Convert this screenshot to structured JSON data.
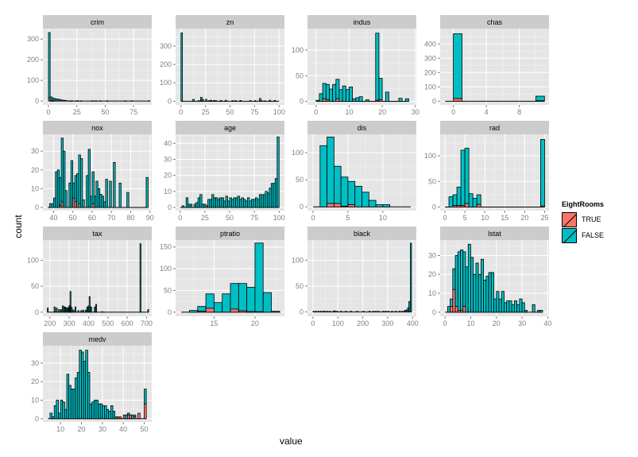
{
  "chart_data": {
    "type": "bar",
    "subtype": "faceted stacked histogram",
    "xlabel": "value",
    "ylabel": "count",
    "legend": {
      "title": "EightRooms",
      "position": "right",
      "entries": [
        {
          "name": "TRUE",
          "color": "#F8766D"
        },
        {
          "name": "FALSE",
          "color": "#00BFC4"
        }
      ]
    },
    "facets": [
      {
        "name": "crim",
        "xlim": [
          -4.9,
          91
        ],
        "ylim": [
          -19,
          351
        ],
        "xticks": [
          0,
          25,
          50,
          75
        ],
        "yticks": [
          0,
          100,
          200,
          300
        ],
        "binwidth": 1.5,
        "range": [
          0,
          89
        ],
        "x": [
          0,
          1.5,
          3,
          4.5,
          6,
          7.5,
          9,
          10.5,
          12,
          13.5,
          15,
          18,
          20,
          24,
          25,
          28,
          38,
          41,
          45,
          51,
          67,
          73,
          88
        ],
        "false": [
          317,
          18,
          14,
          12,
          10,
          9,
          8,
          5,
          4,
          3,
          2,
          1,
          1,
          1,
          1,
          1,
          1,
          1,
          1,
          1,
          1,
          1,
          1
        ],
        "true": [
          15,
          2,
          1,
          0,
          0,
          0,
          0,
          0,
          0,
          0,
          0,
          0,
          0,
          0,
          0,
          0,
          0,
          0,
          0,
          0,
          0,
          0,
          0
        ]
      },
      {
        "name": "zn",
        "xlim": [
          -5.5,
          105.5
        ],
        "ylim": [
          -20,
          395
        ],
        "xticks": [
          0,
          25,
          50,
          75,
          100
        ],
        "yticks": [
          0,
          100,
          200,
          300
        ],
        "binwidth": 1.5,
        "range": [
          0,
          100
        ],
        "x": [
          0,
          12,
          17.5,
          20,
          21.5,
          25,
          28,
          30,
          33,
          35,
          40,
          45,
          52,
          55,
          60,
          70,
          75,
          80,
          82,
          85,
          90,
          95
        ],
        "false": [
          370,
          10,
          3,
          17,
          10,
          10,
          3,
          5,
          4,
          3,
          4,
          5,
          3,
          3,
          4,
          3,
          3,
          13,
          2,
          2,
          5,
          4
        ],
        "true": [
          2,
          0,
          0,
          4,
          0,
          0,
          0,
          0,
          0,
          0,
          0,
          0,
          0,
          0,
          0,
          0,
          0,
          2,
          0,
          0,
          0,
          0
        ]
      },
      {
        "name": "indus",
        "xlim": [
          -2.6,
          30.3
        ],
        "ylim": [
          -7,
          142
        ],
        "xticks": [
          0,
          10,
          20,
          30
        ],
        "yticks": [
          0,
          50,
          100
        ],
        "binwidth": 1,
        "range": [
          0,
          28
        ],
        "x": [
          0,
          1,
          2,
          3,
          4,
          5,
          6,
          7,
          8,
          9,
          10,
          11,
          12,
          13,
          15,
          18,
          19,
          21,
          25,
          27
        ],
        "false": [
          2,
          15,
          30,
          30,
          24,
          33,
          38,
          23,
          30,
          23,
          28,
          5,
          7,
          9,
          3,
          131,
          42,
          18,
          6,
          5
        ],
        "true": [
          0,
          0,
          5,
          3,
          0,
          0,
          5,
          0,
          0,
          0,
          0,
          0,
          0,
          0,
          0,
          2,
          3,
          0,
          0,
          0
        ]
      },
      {
        "name": "chas",
        "xlim": [
          -1.6,
          11.6
        ],
        "ylim": [
          -26,
          507
        ],
        "xticks": [
          0,
          4,
          8
        ],
        "yticks": [
          0,
          100,
          200,
          300,
          400
        ],
        "binwidth": 1.05,
        "range": [
          -1,
          11
        ],
        "x": [
          0,
          10
        ],
        "false": [
          453,
          32
        ],
        "true": [
          18,
          3
        ]
      },
      {
        "name": "nox",
        "xlim": [
          34.5,
          90.9
        ],
        "ylim": [
          -1.7,
          39
        ],
        "xticks": [
          40,
          50,
          60,
          70,
          80,
          90
        ],
        "yticks": [
          0,
          10,
          20,
          30
        ],
        "binwidth": 1,
        "range": [
          37,
          89
        ],
        "x": [
          38,
          39,
          40,
          41,
          42,
          43,
          44,
          45,
          46,
          48,
          49,
          50,
          51,
          52,
          53,
          54,
          55,
          57,
          58,
          59,
          60,
          61,
          62,
          63,
          64,
          65,
          66,
          67,
          69,
          71,
          74,
          78,
          88
        ],
        "false": [
          2,
          2,
          5,
          19,
          20,
          15,
          34,
          30,
          9,
          13,
          25,
          8,
          14,
          18,
          26,
          26,
          4,
          17,
          31,
          6,
          17,
          6,
          14,
          10,
          7,
          6,
          3,
          15,
          14,
          24,
          13,
          8,
          16
        ],
        "true": [
          0,
          0,
          0,
          0,
          0,
          1,
          3,
          0,
          0,
          0,
          0,
          5,
          3,
          0,
          2,
          0,
          0,
          0,
          0,
          0,
          2,
          0,
          0,
          0,
          0,
          0,
          0,
          0,
          0,
          0,
          0,
          0,
          0
        ]
      },
      {
        "name": "age",
        "xlim": [
          -4.6,
          105.4
        ],
        "ylim": [
          -2,
          45.6
        ],
        "xticks": [
          0,
          25,
          50,
          75,
          100
        ],
        "yticks": [
          0,
          10,
          20,
          30,
          40
        ],
        "binwidth": 2,
        "range": [
          0,
          100
        ],
        "x": [
          2,
          6,
          8,
          10,
          14,
          16,
          18,
          20,
          22,
          24,
          26,
          28,
          30,
          32,
          34,
          36,
          38,
          40,
          42,
          44,
          46,
          48,
          50,
          52,
          54,
          56,
          58,
          60,
          62,
          64,
          66,
          68,
          70,
          72,
          74,
          76,
          78,
          80,
          82,
          84,
          86,
          88,
          90,
          92,
          94,
          96,
          98
        ],
        "false": [
          1,
          6,
          2,
          2,
          2,
          3,
          6,
          8,
          2,
          2,
          1,
          5,
          5,
          8,
          6,
          6,
          5,
          6,
          6,
          4,
          7,
          4,
          6,
          5,
          6,
          6,
          7,
          5,
          6,
          5,
          4,
          6,
          4,
          5,
          5,
          6,
          5,
          8,
          8,
          8,
          10,
          9,
          12,
          15,
          15,
          18,
          44
        ],
        "true": [
          0,
          0,
          0,
          0,
          0,
          0,
          0,
          0,
          0,
          0,
          0,
          0,
          0,
          0,
          0,
          0,
          0,
          0,
          0,
          0,
          0,
          0,
          0,
          0,
          0,
          0,
          0,
          0,
          0,
          0,
          0,
          0,
          0,
          0,
          0,
          0,
          0,
          0,
          0,
          0,
          0,
          0,
          0,
          0,
          0,
          0,
          0
        ]
      },
      {
        "name": "dis",
        "xlim": [
          -0.8,
          14.8
        ],
        "ylim": [
          -7,
          134
        ],
        "xticks": [
          0,
          5,
          10
        ],
        "yticks": [
          0,
          50,
          100
        ],
        "binwidth": 1,
        "range": [
          0,
          14
        ],
        "x": [
          1,
          2,
          3,
          4,
          5,
          6,
          7,
          8,
          9,
          10
        ],
        "false": [
          113,
          123,
          69,
          54,
          43,
          38,
          27,
          12,
          4,
          4
        ],
        "true": [
          0,
          6,
          6,
          1,
          4,
          0,
          0,
          0,
          0,
          0
        ]
      },
      {
        "name": "rad",
        "xlim": [
          -1.2,
          26.1
        ],
        "ylim": [
          -7,
          142
        ],
        "xticks": [
          0,
          5,
          10,
          15,
          20,
          25
        ],
        "yticks": [
          0,
          50,
          100
        ],
        "binwidth": 1,
        "range": [
          0,
          25
        ],
        "x": [
          1,
          2,
          3,
          4,
          5,
          6,
          7,
          8,
          24
        ],
        "false": [
          20,
          21,
          36,
          108,
          108,
          26,
          17,
          19,
          130
        ],
        "true": [
          0,
          3,
          3,
          3,
          7,
          0,
          0,
          5,
          2
        ]
      },
      {
        "name": "tax",
        "xlim": [
          164,
          727
        ],
        "ylim": [
          -8,
          139
        ],
        "xticks": [
          200,
          300,
          400,
          500,
          600,
          700
        ],
        "yticks": [
          0,
          50,
          100
        ],
        "binwidth": 5,
        "range": [
          187,
          711
        ],
        "x": [
          187,
          222,
          233,
          245,
          255,
          265,
          270,
          277,
          281,
          289,
          296,
          300,
          304,
          307,
          311,
          320,
          330,
          345,
          360,
          370,
          384,
          391,
          398,
          403,
          411,
          430,
          437,
          469,
          666,
          706
        ],
        "false": [
          8,
          10,
          8,
          5,
          5,
          12,
          10,
          10,
          8,
          8,
          10,
          13,
          40,
          10,
          8,
          4,
          10,
          3,
          3,
          4,
          4,
          10,
          12,
          30,
          10,
          10,
          15,
          1,
          132,
          5
        ],
        "true": [
          0,
          0,
          0,
          0,
          0,
          0,
          0,
          0,
          0,
          0,
          0,
          0,
          0,
          0,
          0,
          0,
          0,
          0,
          0,
          0,
          0,
          0,
          0,
          0,
          0,
          0,
          0,
          0,
          0,
          0
        ]
      },
      {
        "name": "ptratio",
        "xlim": [
          10.3,
          23.6
        ],
        "ylim": [
          -9.6,
          166
        ],
        "xticks": [
          15,
          20
        ],
        "yticks": [
          0,
          50,
          100,
          150
        ],
        "binwidth": 1,
        "range": [
          11,
          23.1
        ],
        "x": [
          12,
          13,
          14,
          15,
          16,
          17,
          18,
          19,
          20,
          21,
          22
        ],
        "false": [
          4,
          11,
          33,
          22,
          42,
          59,
          63,
          56,
          158,
          45,
          2
        ],
        "true": [
          0,
          2,
          9,
          0,
          0,
          7,
          3,
          1,
          1,
          0,
          0
        ]
      },
      {
        "name": "black",
        "xlim": [
          -22,
          415
        ],
        "ylim": [
          -8.7,
          139
        ],
        "xticks": [
          0,
          100,
          200,
          300,
          400
        ],
        "yticks": [
          0,
          50,
          100
        ],
        "binwidth": 5,
        "range": [
          0,
          396
        ],
        "x": [
          0,
          10,
          20,
          30,
          40,
          45,
          55,
          65,
          80,
          85,
          95,
          110,
          130,
          150,
          175,
          200,
          225,
          240,
          250,
          260,
          280,
          290,
          300,
          315,
          330,
          345,
          355,
          365,
          370,
          375,
          380,
          385,
          391
        ],
        "false": [
          1,
          1,
          1,
          1,
          1,
          1,
          1,
          1,
          1,
          2,
          1,
          1,
          1,
          1,
          1,
          1,
          1,
          1,
          1,
          1,
          1,
          1,
          1,
          1,
          1,
          1,
          1,
          2,
          3,
          4,
          8,
          20,
          133
        ],
        "true": [
          0,
          0,
          0,
          0,
          0,
          0,
          0,
          0,
          0,
          0,
          0,
          0,
          0,
          0,
          0,
          0,
          0,
          0,
          0,
          0,
          0,
          0,
          0,
          0,
          0,
          0,
          0,
          0,
          0,
          0,
          0,
          0,
          0
        ]
      },
      {
        "name": "lstat",
        "xlim": [
          -1.9,
          40.5
        ],
        "ylim": [
          -2.2,
          38.2
        ],
        "xticks": [
          0,
          10,
          20,
          30,
          40
        ],
        "yticks": [
          0,
          10,
          20,
          30
        ],
        "binwidth": 1,
        "range": [
          0,
          38
        ],
        "x": [
          1,
          2,
          3,
          4,
          5,
          6,
          7,
          8,
          9,
          10,
          11,
          12,
          13,
          14,
          15,
          16,
          17,
          18,
          19,
          20,
          21,
          22,
          23,
          24,
          25,
          26,
          27,
          28,
          29,
          30,
          31,
          34,
          36,
          37
        ],
        "false": [
          3,
          4,
          11,
          27,
          31,
          32,
          29,
          24,
          36,
          29,
          20,
          26,
          20,
          28,
          17,
          19,
          21,
          21,
          7,
          11,
          7,
          11,
          5,
          6,
          6,
          4,
          6,
          4,
          7,
          5,
          1,
          4,
          1,
          1
        ],
        "true": [
          0,
          3,
          12,
          3,
          1,
          1,
          3,
          0,
          0,
          0,
          0,
          0,
          0,
          0,
          0,
          0,
          0,
          0,
          0,
          0,
          0,
          0,
          0,
          0,
          0,
          0,
          0,
          0,
          0,
          0,
          0,
          0,
          0,
          0
        ]
      },
      {
        "name": "medv",
        "xlim": [
          1.6,
          53.6
        ],
        "ylim": [
          -1.8,
          39.4
        ],
        "xticks": [
          10,
          20,
          30,
          40,
          50
        ],
        "yticks": [
          0,
          10,
          20,
          30
        ],
        "binwidth": 1,
        "range": [
          4,
          51
        ],
        "x": [
          5,
          6,
          7,
          8,
          9,
          10,
          11,
          12,
          13,
          14,
          15,
          16,
          17,
          18,
          19,
          20,
          21,
          22,
          23,
          24,
          25,
          26,
          27,
          28,
          29,
          30,
          31,
          32,
          33,
          34,
          35,
          36,
          37,
          38,
          40,
          41,
          42,
          43,
          44,
          45,
          47,
          50
        ],
        "false": [
          3,
          1,
          7,
          10,
          3,
          10,
          9,
          5,
          24,
          18,
          16,
          16,
          22,
          25,
          37,
          36,
          31,
          37,
          25,
          8,
          9,
          10,
          10,
          8,
          8,
          7,
          7,
          5,
          4,
          7,
          4,
          1,
          0,
          0,
          0,
          2,
          1,
          0,
          2,
          1,
          0,
          8
        ],
        "true": [
          0,
          0,
          0,
          0,
          0,
          0,
          0,
          0,
          0,
          0,
          0,
          0,
          0,
          0,
          0,
          0,
          0,
          0,
          0,
          0,
          0,
          0,
          0,
          0,
          0,
          0,
          0,
          0,
          0,
          0,
          0,
          0,
          1,
          1,
          2,
          0,
          2,
          2,
          0,
          1,
          3,
          8
        ]
      }
    ]
  }
}
